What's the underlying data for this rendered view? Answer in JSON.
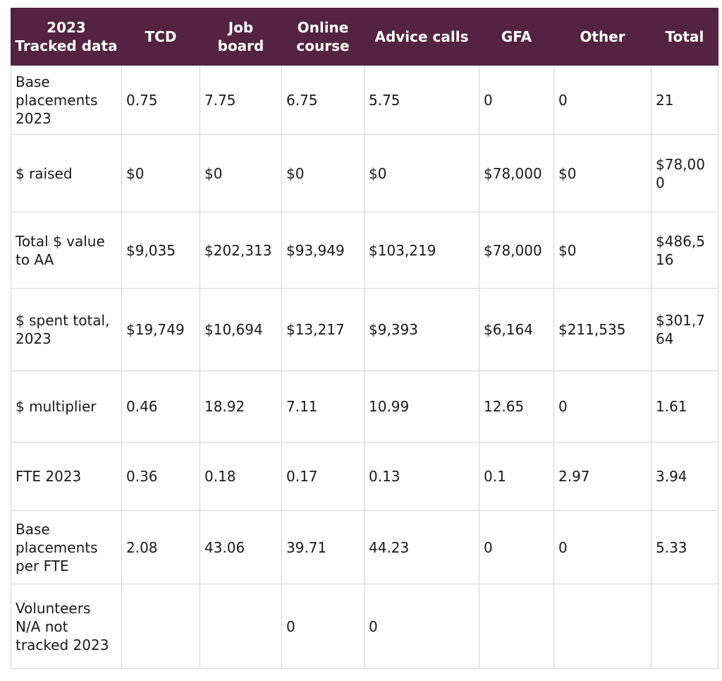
{
  "table": {
    "headers": [
      "2023 Tracked data",
      "TCD",
      "Job board",
      "Online course",
      "Advice calls",
      "GFA",
      "Other",
      "Total"
    ],
    "rows": [
      [
        "Base placements 2023",
        "0.75",
        "7.75",
        "6.75",
        "5.75",
        "0",
        "0",
        "21"
      ],
      [
        "$ raised",
        "$0",
        "$0",
        "$0",
        "$0",
        "$78,000",
        "$0",
        "$78,000"
      ],
      [
        "Total $ value to AA",
        "$9,035",
        "$202,313",
        "$93,949",
        "$103,219",
        "$78,000",
        "$0",
        "$486,516"
      ],
      [
        "$ spent total, 2023",
        "$19,749",
        "$10,694",
        "$13,217",
        "$9,393",
        "$6,164",
        "$211,535",
        "$301,764"
      ],
      [
        "$ multiplier",
        "0.46",
        "18.92",
        "7.11",
        "10.99",
        "12.65",
        "0",
        "1.61"
      ],
      [
        "FTE 2023",
        "0.36",
        "0.18",
        "0.17",
        "0.13",
        "0.1",
        "2.97",
        "3.94"
      ],
      [
        "Base placements per FTE",
        "2.08",
        "43.06",
        "39.71",
        "44.23",
        "0",
        "0",
        "5.33"
      ],
      [
        "Volunteers N/A not tracked 2023",
        "",
        "",
        "0",
        "0",
        "",
        "",
        ""
      ]
    ]
  },
  "colors": {
    "header_background": "#532341",
    "header_text": "#ffffff",
    "grid_line": "#d4d4d4"
  }
}
